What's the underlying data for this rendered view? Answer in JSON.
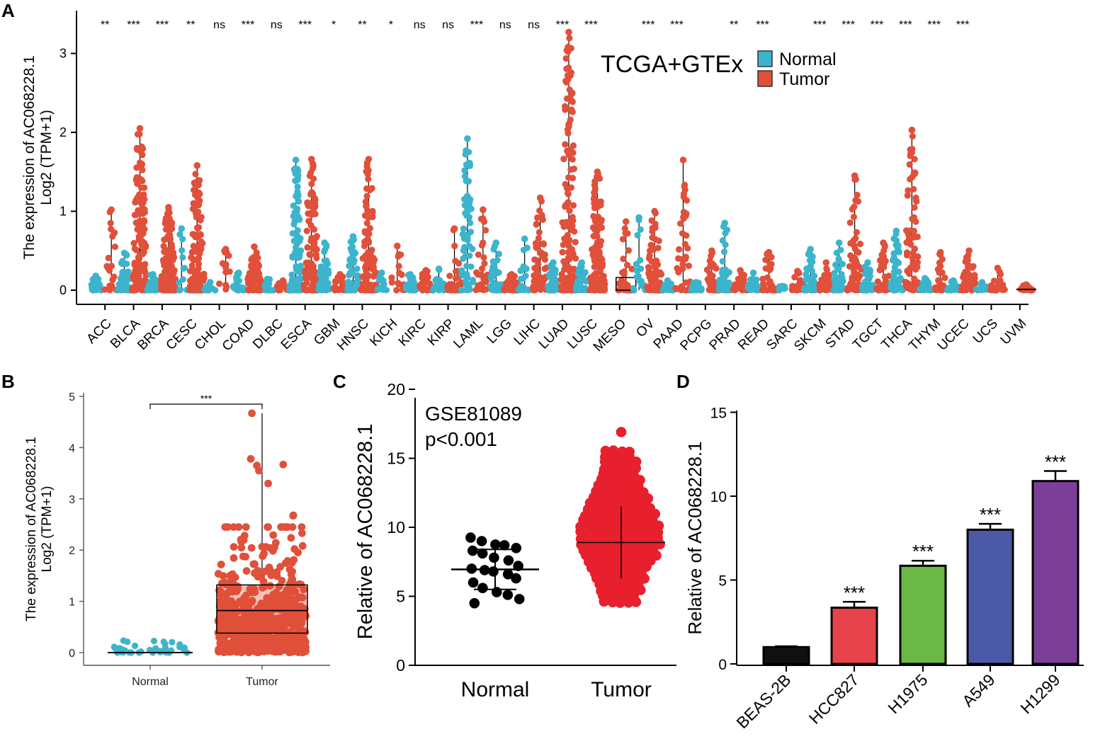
{
  "figure": {
    "panel_labels": [
      "A",
      "B",
      "C",
      "D"
    ],
    "colors": {
      "normal": "#3cb4cc",
      "tumor": "#e0503a",
      "black": "#000000",
      "red_dot": "#e8202e"
    }
  },
  "chart_data": [
    {
      "id": "A",
      "type": "scatter",
      "subtype": "jitter-box-by-cancer",
      "title": "TCGA+GTEx",
      "ylabel_line1": "The expression of AC068228.1",
      "ylabel_line2": "Log2 (TPM+1)",
      "ylim": [
        0,
        3.5
      ],
      "yticks": [
        0,
        1,
        2,
        3
      ],
      "legend": {
        "position": "top-right",
        "entries": [
          "Normal",
          "Tumor"
        ]
      },
      "categories": [
        "ACC",
        "BLCA",
        "BRCA",
        "CESC",
        "CHOL",
        "COAD",
        "DLBC",
        "ESCA",
        "GBM",
        "HNSC",
        "KICH",
        "KIRC",
        "KIRP",
        "LAML",
        "LGG",
        "LIHC",
        "LUAD",
        "LUSC",
        "MESO",
        "OV",
        "PAAD",
        "PCPG",
        "PRAD",
        "READ",
        "SARC",
        "SKCM",
        "STAD",
        "TGCT",
        "THCA",
        "THYM",
        "UCEC",
        "UCS",
        "UVM"
      ],
      "significance": [
        "**",
        "***",
        "***",
        "**",
        "ns",
        "***",
        "ns",
        "***",
        "*",
        "**",
        "*",
        "ns",
        "ns",
        "***",
        "ns",
        "ns",
        "***",
        "***",
        "",
        "***",
        "***",
        "",
        "**",
        "***",
        "",
        "***",
        "***",
        "***",
        "***",
        "***",
        "***",
        "",
        ""
      ],
      "series": [
        {
          "name": "Normal",
          "max": [
            0.18,
            0.47,
            0.2,
            0.78,
            0.1,
            0.22,
            0.14,
            1.65,
            0.6,
            0.68,
            0.22,
            0.2,
            0.27,
            1.92,
            0.6,
            0.65,
            0.35,
            0.35,
            null,
            0.92,
            0.12,
            0.1,
            0.85,
            0.22,
            0.05,
            0.52,
            0.6,
            0.35,
            0.75,
            0.15,
            0.12,
            0.1,
            null
          ],
          "n": [
            30,
            40,
            40,
            12,
            8,
            25,
            12,
            130,
            40,
            45,
            14,
            30,
            25,
            70,
            40,
            18,
            50,
            30,
            0,
            20,
            12,
            18,
            35,
            20,
            6,
            40,
            35,
            35,
            50,
            20,
            25,
            10,
            0
          ]
        },
        {
          "name": "Tumor",
          "max": [
            1.02,
            2.05,
            1.05,
            1.58,
            0.52,
            0.55,
            0.12,
            1.66,
            0.2,
            1.66,
            0.56,
            0.25,
            0.78,
            1.02,
            0.2,
            1.17,
            3.27,
            1.5,
            0.87,
            1.0,
            1.65,
            0.5,
            0.25,
            0.48,
            0.24,
            0.35,
            1.45,
            0.6,
            2.03,
            0.48,
            0.5,
            0.28,
            0.07
          ],
          "n": [
            20,
            150,
            130,
            120,
            14,
            60,
            14,
            100,
            30,
            120,
            14,
            30,
            35,
            30,
            40,
            60,
            160,
            140,
            30,
            80,
            40,
            30,
            30,
            30,
            25,
            30,
            60,
            30,
            80,
            25,
            50,
            20,
            20
          ]
        }
      ]
    },
    {
      "id": "B",
      "type": "scatter",
      "subtype": "box-jitter",
      "categories": [
        "Normal",
        "Tumor"
      ],
      "ylabel_line1": "The expression of AC068228.1",
      "ylabel_line2": "Log2 (TPM+1)",
      "ylim": [
        0,
        5
      ],
      "yticks": [
        0,
        1,
        2,
        3,
        4,
        5
      ],
      "significance": "***",
      "normal": {
        "median": 0.0,
        "q1": 0.0,
        "q3": 0.02,
        "max": 0.28
      },
      "tumor": {
        "median": 0.82,
        "q1": 0.38,
        "q3": 1.32,
        "whisker_high": 4.67,
        "outliers": [
          4.67,
          3.78,
          3.67,
          3.65,
          3.55,
          3.3,
          2.68,
          2.67
        ]
      }
    },
    {
      "id": "C",
      "type": "scatter",
      "subtype": "dot-plot-mean-sd",
      "annotation_line1": "GSE81089",
      "annotation_line2": "p<0.001",
      "ylabel": "Relative of AC068228.1",
      "ylim": [
        0,
        20
      ],
      "yticks": [
        0,
        5,
        10,
        15,
        20
      ],
      "categories": [
        "Normal",
        "Tumor"
      ],
      "normal": {
        "mean": 6.95,
        "sd": 1.45,
        "values": [
          9.25,
          9.0,
          8.75,
          8.7,
          8.5,
          8.3,
          8.1,
          7.8,
          7.6,
          7.2,
          7.0,
          6.9,
          6.8,
          6.6,
          6.3,
          6.0,
          5.6,
          5.3,
          5.1,
          4.8,
          4.5
        ]
      },
      "tumor": {
        "mean": 8.9,
        "sd": 2.6,
        "min": 4.5,
        "max": 16.9
      }
    },
    {
      "id": "D",
      "type": "bar",
      "ylabel": "Relative of AC068228.1",
      "ylim": [
        0,
        15
      ],
      "yticks": [
        0,
        5,
        10,
        15
      ],
      "categories": [
        "BEAS-2B",
        "HCC827",
        "H1975",
        "A549",
        "H1299"
      ],
      "values": [
        1.0,
        3.35,
        5.85,
        8.0,
        10.9
      ],
      "errors": [
        0.05,
        0.35,
        0.3,
        0.35,
        0.6
      ],
      "colors": [
        "#111111",
        "#e8424a",
        "#6ab845",
        "#4a5aa6",
        "#7c3f98"
      ],
      "significance": [
        "",
        "***",
        "***",
        "***",
        "***"
      ]
    }
  ]
}
